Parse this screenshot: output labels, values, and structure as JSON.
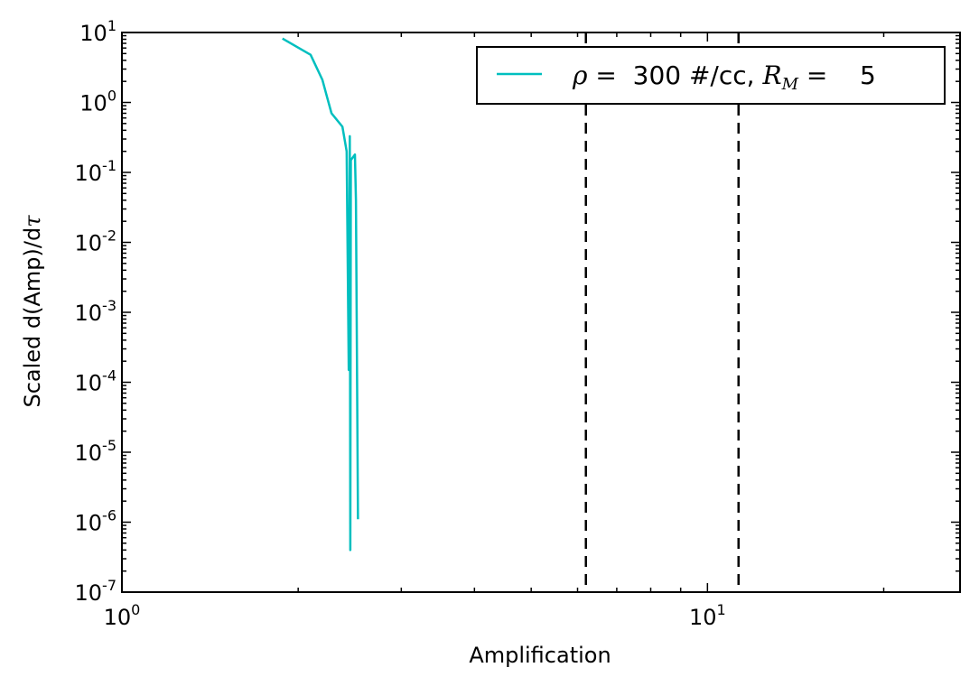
{
  "chart_data": {
    "type": "line",
    "title": "",
    "xlabel": "Amplification",
    "ylabel_prefix": "Scaled d(Amp)/d",
    "ylabel_symbol": "τ",
    "xscale": "log",
    "yscale": "log",
    "xlim": [
      1,
      27
    ],
    "ylim": [
      1e-07,
      10
    ],
    "grid": false,
    "legend_placement": "top-right",
    "x_ticks": [
      {
        "base": "10",
        "exp": "0",
        "value": 1
      },
      {
        "base": "10",
        "exp": "1",
        "value": 10
      }
    ],
    "y_ticks": [
      {
        "base": "10",
        "exp": "1",
        "value": 10
      },
      {
        "base": "10",
        "exp": "0",
        "value": 1
      },
      {
        "base": "10",
        "exp": "-1",
        "value": 0.1
      },
      {
        "base": "10",
        "exp": "-2",
        "value": 0.01
      },
      {
        "base": "10",
        "exp": "-3",
        "value": 0.001
      },
      {
        "base": "10",
        "exp": "-4",
        "value": 0.0001
      },
      {
        "base": "10",
        "exp": "-5",
        "value": 1e-05
      },
      {
        "base": "10",
        "exp": "-6",
        "value": 1e-06
      },
      {
        "base": "10",
        "exp": "-7",
        "value": 1e-07
      }
    ],
    "series": [
      {
        "name_parts": {
          "rho": "ρ",
          "text1": " =  300 #/cc, ",
          "R": "R",
          "sub": "M",
          "text2": " =    5"
        },
        "color": "#00bfbf",
        "points": [
          [
            1.88,
            8.2
          ],
          [
            2.1,
            4.8
          ],
          [
            2.2,
            2.1
          ],
          [
            2.24,
            1.2
          ],
          [
            2.28,
            0.7
          ],
          [
            2.38,
            0.45
          ],
          [
            2.42,
            0.2
          ],
          [
            2.44,
            0.00015
          ],
          [
            2.45,
            0.33
          ],
          [
            2.455,
            4e-07
          ],
          [
            2.46,
            0.15
          ],
          [
            2.5,
            0.18
          ],
          [
            2.51,
            0.04
          ],
          [
            2.53,
            1.1e-06
          ]
        ]
      }
    ],
    "vlines": [
      {
        "x": 6.2,
        "color": "#000000",
        "style": "dashed"
      },
      {
        "x": 11.3,
        "color": "#000000",
        "style": "dashed"
      }
    ]
  }
}
